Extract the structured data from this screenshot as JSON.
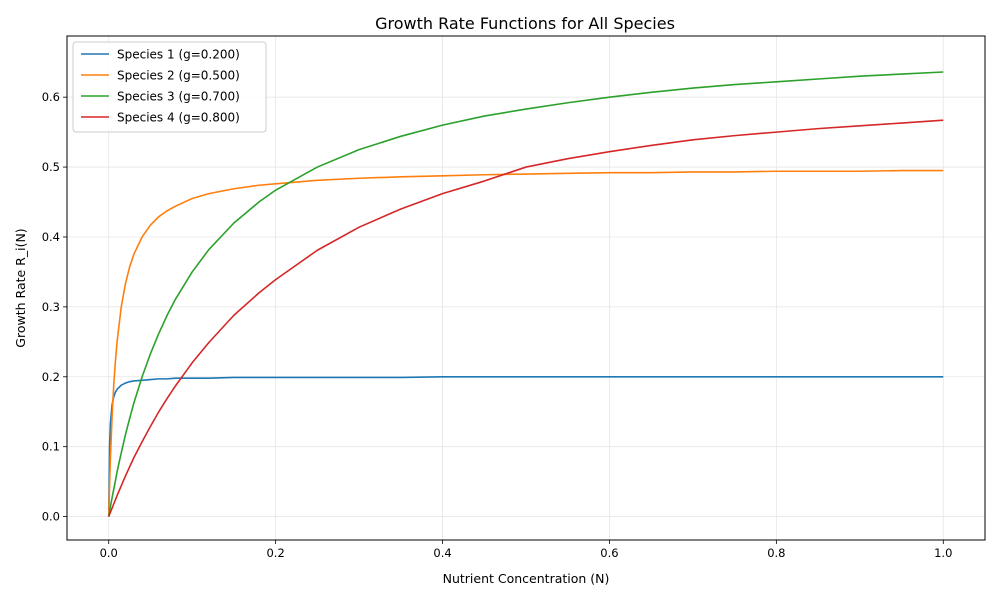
{
  "chart_data": {
    "type": "line",
    "title": "Growth Rate Functions for All Species",
    "xlabel": "Nutrient Concentration (N)",
    "ylabel": "Growth Rate R_i(N)",
    "xlim": [
      -0.05,
      1.05
    ],
    "ylim": [
      -0.0335,
      0.6875
    ],
    "xticks": [
      0.0,
      0.2,
      0.4,
      0.6,
      0.8,
      1.0
    ],
    "xtick_labels": [
      "0.0",
      "0.2",
      "0.4",
      "0.6",
      "0.8",
      "1.0"
    ],
    "yticks": [
      0.0,
      0.1,
      0.2,
      0.3,
      0.4,
      0.5,
      0.6
    ],
    "ytick_labels": [
      "0.0",
      "0.1",
      "0.2",
      "0.3",
      "0.4",
      "0.5",
      "0.6"
    ],
    "grid": true,
    "legend_position": "top-left",
    "x": [
      0.0,
      0.001,
      0.002,
      0.004,
      0.006,
      0.008,
      0.01,
      0.015,
      0.02,
      0.025,
      0.03,
      0.04,
      0.05,
      0.06,
      0.07,
      0.08,
      0.1,
      0.12,
      0.15,
      0.18,
      0.2,
      0.25,
      0.3,
      0.35,
      0.4,
      0.45,
      0.5,
      0.55,
      0.6,
      0.65,
      0.7,
      0.75,
      0.8,
      0.85,
      0.9,
      0.95,
      1.0
    ],
    "series": [
      {
        "name": "Species 1 (g=0.200)",
        "color": "#1f77b4",
        "values": [
          0.0,
          0.1,
          0.133,
          0.16,
          0.171,
          0.178,
          0.182,
          0.188,
          0.191,
          0.193,
          0.194,
          0.195,
          0.196,
          0.197,
          0.197,
          0.198,
          0.198,
          0.198,
          0.199,
          0.199,
          0.199,
          0.199,
          0.199,
          0.199,
          0.2,
          0.2,
          0.2,
          0.2,
          0.2,
          0.2,
          0.2,
          0.2,
          0.2,
          0.2,
          0.2,
          0.2,
          0.2
        ]
      },
      {
        "name": "Species 2 (g=0.500)",
        "color": "#ff7f0e",
        "values": [
          0.0,
          0.045,
          0.083,
          0.143,
          0.188,
          0.222,
          0.25,
          0.3,
          0.333,
          0.357,
          0.375,
          0.4,
          0.417,
          0.429,
          0.4375,
          0.444,
          0.455,
          0.462,
          0.469,
          0.474,
          0.476,
          0.481,
          0.484,
          0.486,
          0.4875,
          0.489,
          0.49,
          0.491,
          0.492,
          0.492,
          0.493,
          0.493,
          0.494,
          0.494,
          0.494,
          0.495,
          0.495
        ]
      },
      {
        "name": "Species 3 (g=0.700)",
        "color": "#2ca02c",
        "values": [
          0.0,
          0.007,
          0.014,
          0.027,
          0.039,
          0.051,
          0.064,
          0.091,
          0.117,
          0.14,
          0.162,
          0.2,
          0.233,
          0.262,
          0.288,
          0.311,
          0.35,
          0.382,
          0.42,
          0.45,
          0.467,
          0.5,
          0.525,
          0.544,
          0.56,
          0.573,
          0.583,
          0.592,
          0.6,
          0.607,
          0.613,
          0.618,
          0.622,
          0.626,
          0.63,
          0.633,
          0.636
        ]
      },
      {
        "name": "Species 4 (g=0.800)",
        "color": "#d62728",
        "values": [
          0.0,
          0.003,
          0.006,
          0.012,
          0.018,
          0.024,
          0.03,
          0.044,
          0.058,
          0.071,
          0.084,
          0.107,
          0.129,
          0.15,
          0.169,
          0.187,
          0.22,
          0.249,
          0.288,
          0.32,
          0.339,
          0.381,
          0.414,
          0.44,
          0.462,
          0.48,
          0.5,
          0.512,
          0.522,
          0.531,
          0.539,
          0.545,
          0.55,
          0.555,
          0.559,
          0.563,
          0.567
        ]
      }
    ]
  }
}
